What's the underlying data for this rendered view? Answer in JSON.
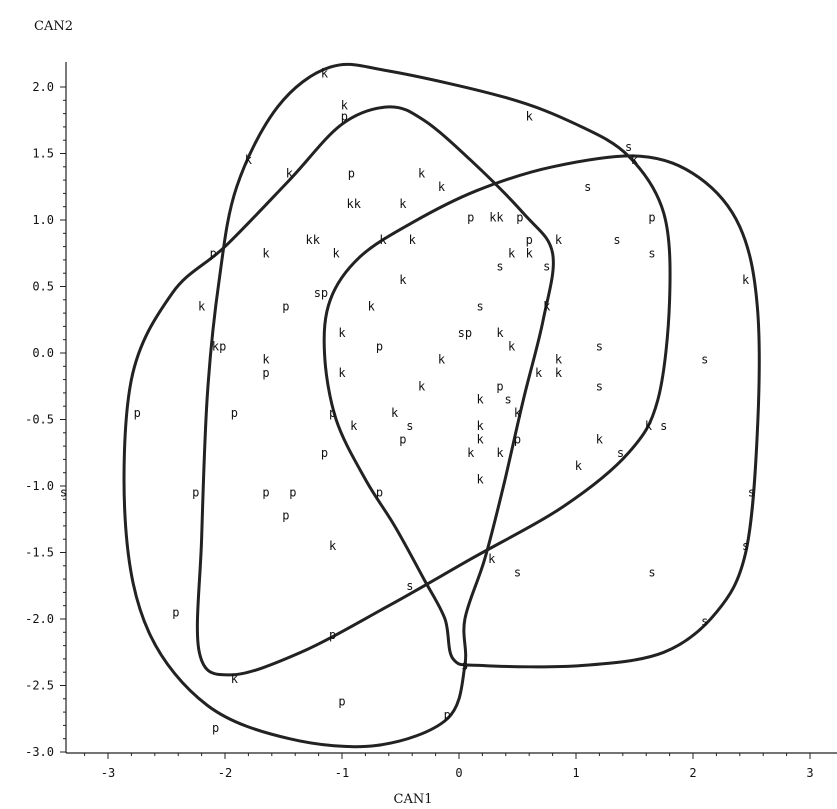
{
  "chart_data": {
    "type": "scatter",
    "xlabel": "CAN1",
    "ylabel": "CAN2",
    "xlim": [
      -3.3,
      3.2
    ],
    "ylim": [
      -3.0,
      2.2
    ],
    "x_ticks": [
      -3,
      -2,
      -1,
      0,
      1,
      2,
      3
    ],
    "x_tick_labels": [
      "-3",
      "-2",
      "-1",
      "0",
      "1",
      "2",
      "3"
    ],
    "y_ticks": [
      2.0,
      1.5,
      1.0,
      0.5,
      0.0,
      -0.5,
      -1.0,
      -1.5,
      -2.0,
      -2.5,
      -3.0
    ],
    "y_tick_labels": [
      "2.0",
      "1.5",
      "1.0",
      "0.5",
      "0.0",
      "-0.5",
      "-1.0",
      "-1.5",
      "-2.0",
      "-2.5",
      "-3.0"
    ],
    "grid": false,
    "points": [
      {
        "label": "k",
        "x": -1.15,
        "y": 2.1
      },
      {
        "label": "k",
        "x": -0.98,
        "y": 1.86
      },
      {
        "label": "p",
        "x": -0.98,
        "y": 1.78
      },
      {
        "label": "k",
        "x": 0.6,
        "y": 1.78
      },
      {
        "label": "s",
        "x": 1.45,
        "y": 1.55
      },
      {
        "label": "k",
        "x": 1.5,
        "y": 1.45
      },
      {
        "label": "k",
        "x": -1.8,
        "y": 1.45
      },
      {
        "label": "k",
        "x": -1.45,
        "y": 1.35
      },
      {
        "label": "p",
        "x": -0.92,
        "y": 1.35
      },
      {
        "label": "k",
        "x": -0.32,
        "y": 1.35
      },
      {
        "label": "k",
        "x": -0.15,
        "y": 1.25
      },
      {
        "label": "s",
        "x": 1.1,
        "y": 1.25
      },
      {
        "label": "kk",
        "x": -0.9,
        "y": 1.12
      },
      {
        "label": "k",
        "x": -0.48,
        "y": 1.12
      },
      {
        "label": "p",
        "x": 0.1,
        "y": 1.02
      },
      {
        "label": "kk",
        "x": 0.32,
        "y": 1.02
      },
      {
        "label": "p",
        "x": 0.52,
        "y": 1.02
      },
      {
        "label": "p",
        "x": 1.65,
        "y": 1.02
      },
      {
        "label": "p",
        "x": -2.1,
        "y": 0.75
      },
      {
        "label": "k",
        "x": -1.65,
        "y": 0.75
      },
      {
        "label": "kk",
        "x": -1.25,
        "y": 0.85
      },
      {
        "label": "k",
        "x": -1.05,
        "y": 0.75
      },
      {
        "label": "k",
        "x": -0.65,
        "y": 0.85
      },
      {
        "label": "k",
        "x": -0.4,
        "y": 0.85
      },
      {
        "label": "p",
        "x": 0.6,
        "y": 0.85
      },
      {
        "label": "k",
        "x": 0.85,
        "y": 0.85
      },
      {
        "label": "s",
        "x": 1.35,
        "y": 0.85
      },
      {
        "label": "k",
        "x": 0.45,
        "y": 0.75
      },
      {
        "label": "k",
        "x": 0.6,
        "y": 0.75
      },
      {
        "label": "s",
        "x": 1.65,
        "y": 0.75
      },
      {
        "label": "s",
        "x": 0.35,
        "y": 0.65
      },
      {
        "label": "s",
        "x": 0.75,
        "y": 0.65
      },
      {
        "label": "k",
        "x": -0.48,
        "y": 0.55
      },
      {
        "label": "k",
        "x": 2.45,
        "y": 0.55
      },
      {
        "label": "sp",
        "x": -1.18,
        "y": 0.45
      },
      {
        "label": "k",
        "x": -2.2,
        "y": 0.35
      },
      {
        "label": "p",
        "x": -1.48,
        "y": 0.35
      },
      {
        "label": "k",
        "x": -0.75,
        "y": 0.35
      },
      {
        "label": "s",
        "x": 0.18,
        "y": 0.35
      },
      {
        "label": "k",
        "x": 0.75,
        "y": 0.35
      },
      {
        "label": "k",
        "x": -1.0,
        "y": 0.15
      },
      {
        "label": "sp",
        "x": 0.05,
        "y": 0.15
      },
      {
        "label": "k",
        "x": 0.35,
        "y": 0.15
      },
      {
        "label": "kp",
        "x": -2.05,
        "y": 0.05
      },
      {
        "label": "p",
        "x": -0.68,
        "y": 0.05
      },
      {
        "label": "k",
        "x": 0.45,
        "y": 0.05
      },
      {
        "label": "s",
        "x": 1.2,
        "y": 0.05
      },
      {
        "label": "k",
        "x": -1.65,
        "y": -0.05
      },
      {
        "label": "k",
        "x": -0.15,
        "y": -0.05
      },
      {
        "label": "k",
        "x": 0.85,
        "y": -0.05
      },
      {
        "label": "s",
        "x": 2.1,
        "y": -0.05
      },
      {
        "label": "p",
        "x": -1.65,
        "y": -0.15
      },
      {
        "label": "k",
        "x": -1.0,
        "y": -0.15
      },
      {
        "label": "k",
        "x": 0.68,
        "y": -0.15
      },
      {
        "label": "k",
        "x": 0.85,
        "y": -0.15
      },
      {
        "label": "k",
        "x": -0.32,
        "y": -0.25
      },
      {
        "label": "p",
        "x": 0.35,
        "y": -0.25
      },
      {
        "label": "s",
        "x": 1.2,
        "y": -0.25
      },
      {
        "label": "k",
        "x": 0.18,
        "y": -0.35
      },
      {
        "label": "s",
        "x": 0.42,
        "y": -0.35
      },
      {
        "label": "p",
        "x": -2.75,
        "y": -0.45
      },
      {
        "label": "p",
        "x": -1.92,
        "y": -0.45
      },
      {
        "label": "p",
        "x": -1.08,
        "y": -0.45
      },
      {
        "label": "k",
        "x": -0.55,
        "y": -0.45
      },
      {
        "label": "k",
        "x": 0.5,
        "y": -0.45
      },
      {
        "label": "k",
        "x": -0.9,
        "y": -0.55
      },
      {
        "label": "s",
        "x": -0.42,
        "y": -0.55
      },
      {
        "label": "k",
        "x": 0.18,
        "y": -0.55
      },
      {
        "label": "k",
        "x": 1.62,
        "y": -0.55
      },
      {
        "label": "s",
        "x": 1.75,
        "y": -0.55
      },
      {
        "label": "p",
        "x": -0.48,
        "y": -0.65
      },
      {
        "label": "k",
        "x": 0.18,
        "y": -0.65
      },
      {
        "label": "p",
        "x": 0.5,
        "y": -0.65
      },
      {
        "label": "k",
        "x": 1.2,
        "y": -0.65
      },
      {
        "label": "p",
        "x": -1.15,
        "y": -0.75
      },
      {
        "label": "k",
        "x": 0.1,
        "y": -0.75
      },
      {
        "label": "k",
        "x": 0.35,
        "y": -0.75
      },
      {
        "label": "s",
        "x": 1.38,
        "y": -0.75
      },
      {
        "label": "k",
        "x": 1.02,
        "y": -0.85
      },
      {
        "label": "k",
        "x": 0.18,
        "y": -0.95
      },
      {
        "label": "s",
        "x": -3.38,
        "y": -1.05
      },
      {
        "label": "p",
        "x": -2.25,
        "y": -1.05
      },
      {
        "label": "p",
        "x": -1.65,
        "y": -1.05
      },
      {
        "label": "p",
        "x": -1.42,
        "y": -1.05
      },
      {
        "label": "p",
        "x": -0.68,
        "y": -1.05
      },
      {
        "label": "s",
        "x": 2.5,
        "y": -1.05
      },
      {
        "label": "p",
        "x": -1.48,
        "y": -1.22
      },
      {
        "label": "k",
        "x": -1.08,
        "y": -1.45
      },
      {
        "label": "s",
        "x": 2.45,
        "y": -1.45
      },
      {
        "label": "k",
        "x": 0.28,
        "y": -1.55
      },
      {
        "label": "s",
        "x": 0.5,
        "y": -1.65
      },
      {
        "label": "s",
        "x": 1.65,
        "y": -1.65
      },
      {
        "label": "s",
        "x": -0.42,
        "y": -1.75
      },
      {
        "label": "p",
        "x": -2.42,
        "y": -1.95
      },
      {
        "label": "s",
        "x": 2.1,
        "y": -2.02
      },
      {
        "label": "p",
        "x": -1.08,
        "y": -2.12
      },
      {
        "label": "s",
        "x": 0.05,
        "y": -2.35
      },
      {
        "label": "k",
        "x": -1.92,
        "y": -2.45
      },
      {
        "label": "p",
        "x": -1.0,
        "y": -2.62
      },
      {
        "label": "p",
        "x": -0.1,
        "y": -2.72
      },
      {
        "label": "p",
        "x": -2.08,
        "y": -2.82
      }
    ],
    "hulls": [
      {
        "points": [
          [
            -1.1,
            2.15
          ],
          [
            -0.6,
            2.12
          ],
          [
            0.4,
            1.92
          ],
          [
            1.0,
            1.72
          ],
          [
            1.45,
            1.48
          ],
          [
            1.75,
            1.05
          ],
          [
            1.8,
            0.4
          ],
          [
            1.7,
            -0.35
          ],
          [
            1.45,
            -0.75
          ],
          [
            0.9,
            -1.15
          ],
          [
            0.1,
            -1.55
          ],
          [
            -0.6,
            -1.9
          ],
          [
            -1.35,
            -2.25
          ],
          [
            -1.95,
            -2.42
          ],
          [
            -2.22,
            -2.25
          ],
          [
            -2.2,
            -1.4
          ],
          [
            -2.15,
            -0.3
          ],
          [
            -2.05,
            0.55
          ],
          [
            -1.9,
            1.25
          ],
          [
            -1.55,
            1.85
          ]
        ]
      },
      {
        "points": [
          [
            -0.6,
            1.85
          ],
          [
            -0.3,
            1.75
          ],
          [
            0.1,
            1.45
          ],
          [
            0.55,
            1.05
          ],
          [
            0.8,
            0.75
          ],
          [
            0.72,
            0.25
          ],
          [
            0.55,
            -0.35
          ],
          [
            0.38,
            -1.0
          ],
          [
            0.22,
            -1.55
          ],
          [
            0.05,
            -2.0
          ],
          [
            0.05,
            -2.35
          ],
          [
            -0.1,
            -2.75
          ],
          [
            -0.7,
            -2.95
          ],
          [
            -1.45,
            -2.9
          ],
          [
            -2.15,
            -2.65
          ],
          [
            -2.65,
            -2.1
          ],
          [
            -2.85,
            -1.3
          ],
          [
            -2.8,
            -0.2
          ],
          [
            -2.45,
            0.45
          ],
          [
            -2.0,
            0.8
          ],
          [
            -1.45,
            1.3
          ],
          [
            -1.0,
            1.72
          ]
        ]
      },
      {
        "points": [
          [
            1.55,
            1.48
          ],
          [
            2.05,
            1.32
          ],
          [
            2.4,
            0.95
          ],
          [
            2.55,
            0.35
          ],
          [
            2.55,
            -0.6
          ],
          [
            2.45,
            -1.5
          ],
          [
            2.2,
            -1.95
          ],
          [
            1.75,
            -2.25
          ],
          [
            1.05,
            -2.35
          ],
          [
            0.2,
            -2.35
          ],
          [
            -0.05,
            -2.3
          ],
          [
            -0.12,
            -2.0
          ],
          [
            -0.3,
            -1.7
          ],
          [
            -0.55,
            -1.3
          ],
          [
            -0.8,
            -0.95
          ],
          [
            -1.05,
            -0.5
          ],
          [
            -1.15,
            0.0
          ],
          [
            -1.1,
            0.4
          ],
          [
            -0.85,
            0.72
          ],
          [
            -0.4,
            0.98
          ],
          [
            0.15,
            1.22
          ],
          [
            0.8,
            1.4
          ]
        ]
      }
    ]
  }
}
